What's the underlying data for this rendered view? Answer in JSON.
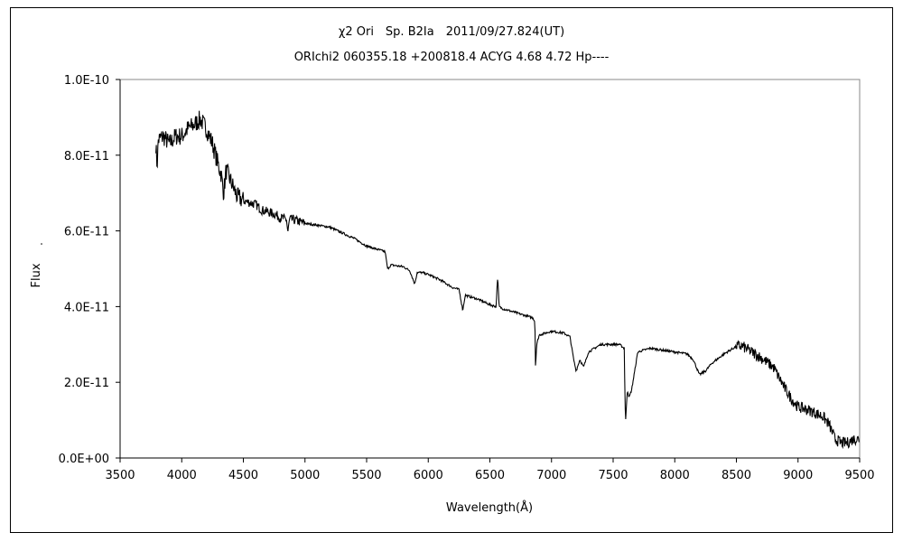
{
  "chart_data": {
    "type": "line",
    "title": "χ2 Ori　Sp. B2Ia　2011/09/27.824(UT)",
    "subtitle": "ORIchi2 060355.18 +200818.4 ACYG 4.68 4.72 Hp----",
    "xlabel": "Wavelength(Å)",
    "ylabel": "Flux",
    "xlim": [
      3500,
      9500
    ],
    "ylim": [
      0,
      1e-10
    ],
    "xticks": [
      "3500",
      "4000",
      "4500",
      "5000",
      "5500",
      "6000",
      "6500",
      "7000",
      "7500",
      "8000",
      "8500",
      "9000",
      "9500"
    ],
    "yticks": [
      "0.0E+00",
      "2.0E-11",
      "4.0E-11",
      "6.0E-11",
      "8.0E-11",
      "1.0E-10"
    ],
    "grid": false,
    "line_color": "#000000",
    "series": [
      {
        "x": [
          3790,
          3800,
          3810,
          3850,
          3900,
          3950,
          4000,
          4050,
          4100,
          4150,
          4200,
          4250,
          4300,
          4320,
          4340,
          4360,
          4400,
          4450,
          4500,
          4550,
          4600,
          4650,
          4700,
          4750,
          4800,
          4850,
          4861,
          4875,
          4900,
          4950,
          5000,
          5100,
          5200,
          5300,
          5400,
          5450,
          5500,
          5600,
          5650,
          5670,
          5700,
          5800,
          5850,
          5890,
          5910,
          5950,
          6000,
          6100,
          6200,
          6250,
          6280,
          6300,
          6400,
          6500,
          6550,
          6563,
          6575,
          6600,
          6700,
          6800,
          6850,
          6865,
          6870,
          6880,
          6900,
          7000,
          7100,
          7150,
          7180,
          7200,
          7230,
          7260,
          7300,
          7350,
          7400,
          7500,
          7550,
          7590,
          7600,
          7615,
          7630,
          7650,
          7680,
          7700,
          7800,
          7900,
          8000,
          8100,
          8150,
          8200,
          8250,
          8300,
          8400,
          8500,
          8550,
          8600,
          8700,
          8800,
          8850,
          8900,
          8950,
          9000,
          9100,
          9200,
          9250,
          9300,
          9350,
          9400,
          9450,
          9500
        ],
        "y": [
          8.3e-11,
          7.7e-11,
          8.4e-11,
          8.5e-11,
          8.3e-11,
          8.5e-11,
          8.5e-11,
          8.7e-11,
          8.8e-11,
          8.95e-11,
          8.7e-11,
          8.3e-11,
          7.7e-11,
          7.5e-11,
          7e-11,
          7.6e-11,
          7.3e-11,
          6.9e-11,
          6.8e-11,
          6.75e-11,
          6.7e-11,
          6.55e-11,
          6.5e-11,
          6.45e-11,
          6.35e-11,
          6.3e-11,
          5.95e-11,
          6.3e-11,
          6.3e-11,
          6.25e-11,
          6.2e-11,
          6.15e-11,
          6.1e-11,
          5.95e-11,
          5.8e-11,
          5.7e-11,
          5.6e-11,
          5.5e-11,
          5.45e-11,
          5e-11,
          5.1e-11,
          5.05e-11,
          4.95e-11,
          4.6e-11,
          4.9e-11,
          4.9e-11,
          4.85e-11,
          4.7e-11,
          4.5e-11,
          4.45e-11,
          3.9e-11,
          4.3e-11,
          4.2e-11,
          4.05e-11,
          4e-11,
          4.8e-11,
          4e-11,
          3.95e-11,
          3.85e-11,
          3.75e-11,
          3.7e-11,
          3.6e-11,
          2.45e-11,
          3e-11,
          3.25e-11,
          3.35e-11,
          3.3e-11,
          3.2e-11,
          2.6e-11,
          2.3e-11,
          2.6e-11,
          2.4e-11,
          2.8e-11,
          2.9e-11,
          3e-11,
          3e-11,
          3e-11,
          2.9e-11,
          9e-12,
          1.8e-11,
          1.6e-11,
          1.8e-11,
          2.4e-11,
          2.8e-11,
          2.9e-11,
          2.85e-11,
          2.8e-11,
          2.75e-11,
          2.6e-11,
          2.2e-11,
          2.3e-11,
          2.5e-11,
          2.75e-11,
          2.95e-11,
          2.95e-11,
          2.85e-11,
          2.65e-11,
          2.4e-11,
          2.1e-11,
          1.8e-11,
          1.55e-11,
          1.35e-11,
          1.25e-11,
          1.1e-11,
          9e-12,
          5e-12,
          4e-12,
          4e-12,
          5e-12,
          5e-12
        ]
      }
    ]
  }
}
